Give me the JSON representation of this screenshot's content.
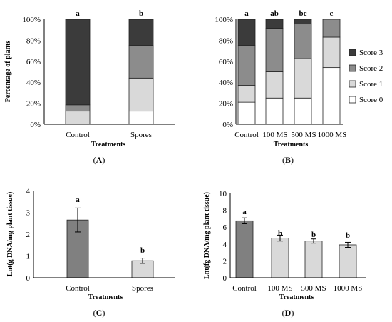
{
  "chart_data": [
    {
      "id": "A",
      "type": "bar",
      "stacked": true,
      "panel_label": "A",
      "categories": [
        "Control",
        "Spores"
      ],
      "xlabel": "Treatments",
      "ylabel": "Percentage of plants",
      "ylim": [
        0,
        100
      ],
      "yticks": [
        "0%",
        "20%",
        "40%",
        "60%",
        "80%",
        "100%"
      ],
      "letters": [
        "a",
        "b"
      ],
      "series": [
        {
          "name": "Score 0",
          "values": [
            0,
            12.5
          ]
        },
        {
          "name": "Score 1",
          "values": [
            12.5,
            31.5
          ]
        },
        {
          "name": "Score 2",
          "values": [
            6,
            31
          ]
        },
        {
          "name": "Score 3",
          "values": [
            81.5,
            25
          ]
        }
      ]
    },
    {
      "id": "B",
      "type": "bar",
      "stacked": true,
      "panel_label": "B",
      "categories": [
        "Control",
        "100 MS",
        "500 MS",
        "1000 MS"
      ],
      "xlabel": "Treatments",
      "ylabel": "",
      "ylim": [
        0,
        100
      ],
      "yticks": [
        "0%",
        "20%",
        "40%",
        "60%",
        "80%",
        "100%"
      ],
      "letters": [
        "a",
        "ab",
        "bc",
        "c"
      ],
      "legend_position": "right",
      "series": [
        {
          "name": "Score 0",
          "values": [
            21,
            25,
            25,
            54
          ]
        },
        {
          "name": "Score 1",
          "values": [
            16,
            25,
            37.5,
            29
          ]
        },
        {
          "name": "Score 2",
          "values": [
            38,
            41.5,
            33,
            17
          ]
        },
        {
          "name": "Score 3",
          "values": [
            25,
            8.5,
            4.5,
            0
          ]
        }
      ]
    },
    {
      "id": "C",
      "type": "bar",
      "panel_label": "C",
      "categories": [
        "Control",
        "Spores"
      ],
      "xlabel": "Treatments",
      "ylabel": "Lnt(g DNA/mg plant tissue)",
      "ylim": [
        0,
        4
      ],
      "yticks": [
        "0",
        "1",
        "2",
        "3",
        "4"
      ],
      "letters": [
        "a",
        "b"
      ],
      "values": [
        2.65,
        0.78
      ],
      "errors": [
        0.55,
        0.12
      ]
    },
    {
      "id": "D",
      "type": "bar",
      "panel_label": "D",
      "categories": [
        "Control",
        "100 MS",
        "500 MS",
        "1000 MS"
      ],
      "xlabel": "Treatments",
      "ylabel": "Lnt(fg DNA/mg plant tissue)",
      "ylim": [
        0,
        10
      ],
      "yticks": [
        "0",
        "2",
        "4",
        "6",
        "8",
        "10"
      ],
      "letters": [
        "a",
        "b",
        "b",
        "b"
      ],
      "values": [
        6.75,
        4.7,
        4.35,
        3.9
      ],
      "errors": [
        0.35,
        0.35,
        0.25,
        0.3
      ]
    }
  ],
  "colors": {
    "score0": "#ffffff",
    "score1": "#d9d9d9",
    "score2": "#8c8c8c",
    "score3": "#3b3b3b",
    "bar_control": "#808080",
    "bar_treated": "#d9d9d9",
    "edge": "#222222"
  }
}
